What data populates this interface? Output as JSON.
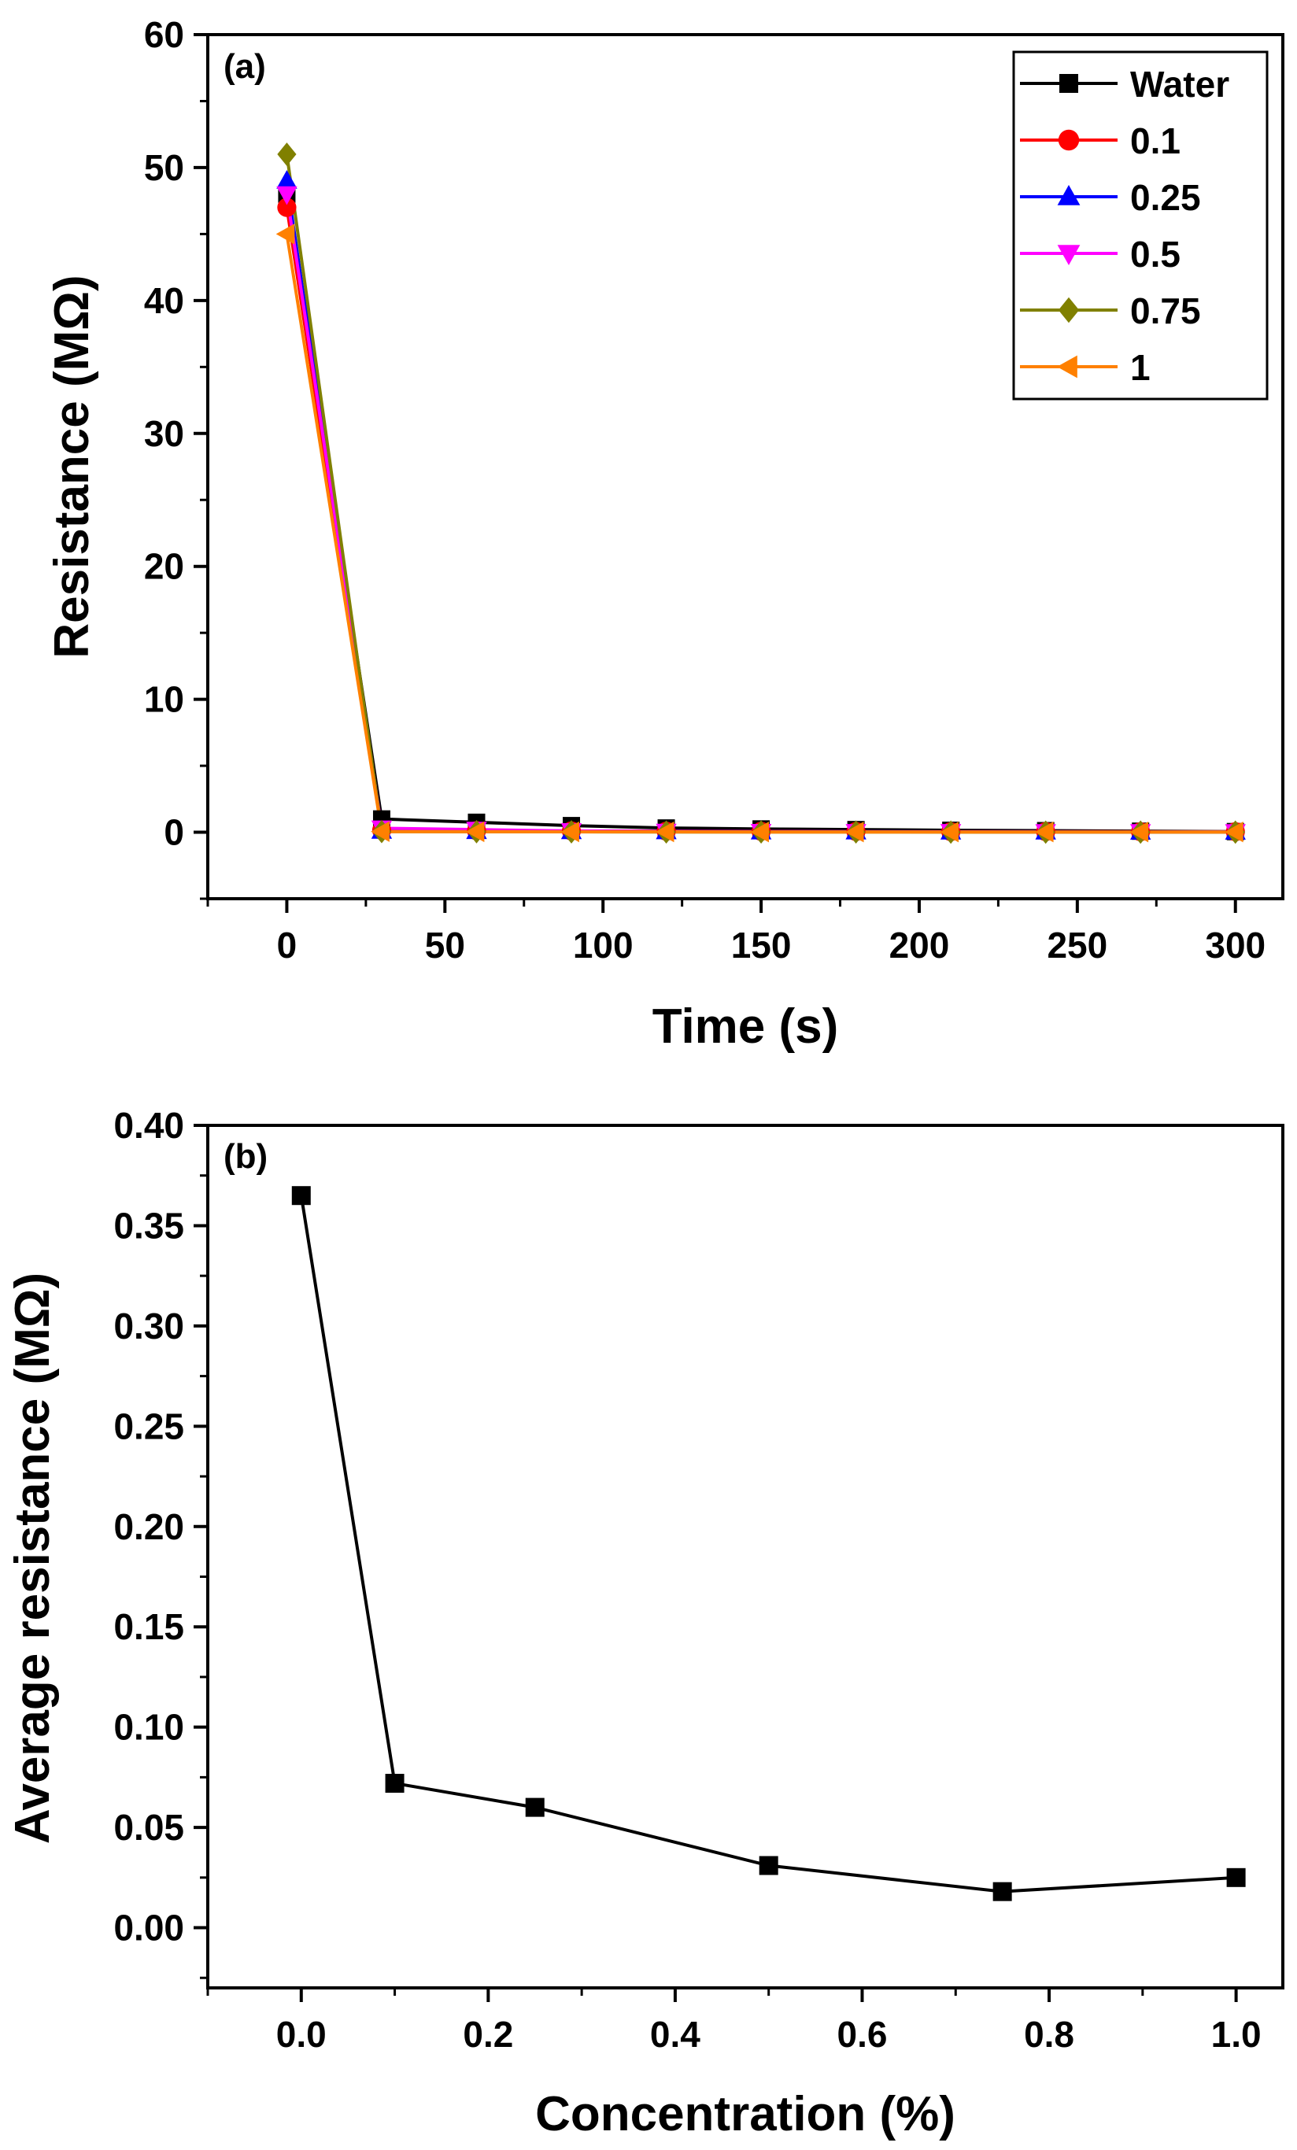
{
  "chart_data": [
    {
      "panel": "(a)",
      "type": "line",
      "xlabel": "Time (s)",
      "ylabel": "Resistance (MΩ)",
      "xlim": [
        -25,
        315
      ],
      "ylim": [
        -5,
        60
      ],
      "xticks": [
        0,
        50,
        100,
        150,
        200,
        250,
        300
      ],
      "yticks": [
        0,
        10,
        20,
        30,
        40,
        50,
        60
      ],
      "legend_position": "top-right",
      "x": [
        0,
        30,
        60,
        90,
        120,
        150,
        180,
        210,
        240,
        270,
        300
      ],
      "series": [
        {
          "name": "Water",
          "color": "#000000",
          "marker": "square",
          "values": [
            48,
            1.0,
            0.75,
            0.5,
            0.32,
            0.25,
            0.2,
            0.15,
            0.12,
            0.08,
            0.05
          ]
        },
        {
          "name": "0.1",
          "color": "#ff0000",
          "marker": "circle",
          "values": [
            47,
            0.15,
            0.12,
            0.1,
            0.08,
            0.07,
            0.06,
            0.05,
            0.05,
            0.04,
            0.04
          ]
        },
        {
          "name": "0.25",
          "color": "#0000ff",
          "marker": "triangle-up",
          "values": [
            49,
            0.1,
            0.08,
            0.07,
            0.06,
            0.05,
            0.05,
            0.04,
            0.04,
            0.03,
            0.03
          ]
        },
        {
          "name": "0.5",
          "color": "#ff00ff",
          "marker": "triangle-down",
          "values": [
            48,
            0.3,
            0.2,
            0.1,
            0.05,
            0.04,
            0.03,
            0.03,
            0.02,
            0.02,
            0.02
          ]
        },
        {
          "name": "0.75",
          "color": "#808000",
          "marker": "diamond",
          "values": [
            51,
            0.05,
            0.04,
            0.03,
            0.02,
            0.02,
            0.02,
            0.01,
            0.01,
            0.01,
            0.01
          ]
        },
        {
          "name": "1",
          "color": "#ff8000",
          "marker": "triangle-left",
          "values": [
            45,
            0.05,
            0.04,
            0.03,
            0.03,
            0.02,
            0.02,
            0.02,
            0.02,
            0.02,
            0.02
          ]
        }
      ]
    },
    {
      "panel": "(b)",
      "type": "line",
      "xlabel": "Concentration (%)",
      "ylabel": "Average resistance (MΩ)",
      "xlim": [
        -0.1,
        1.05
      ],
      "ylim": [
        -0.03,
        0.4
      ],
      "xticks": [
        "0.0",
        "0.2",
        "0.4",
        "0.6",
        "0.8",
        "1.0"
      ],
      "yticks": [
        "0.00",
        "0.05",
        "0.10",
        "0.15",
        "0.20",
        "0.25",
        "0.30",
        "0.35",
        "0.40"
      ],
      "series": [
        {
          "name": "Average resistance",
          "color": "#000000",
          "marker": "square",
          "x": [
            0,
            0.1,
            0.25,
            0.5,
            0.75,
            1.0
          ],
          "values": [
            0.365,
            0.072,
            0.06,
            0.031,
            0.018,
            0.025
          ]
        }
      ]
    }
  ]
}
